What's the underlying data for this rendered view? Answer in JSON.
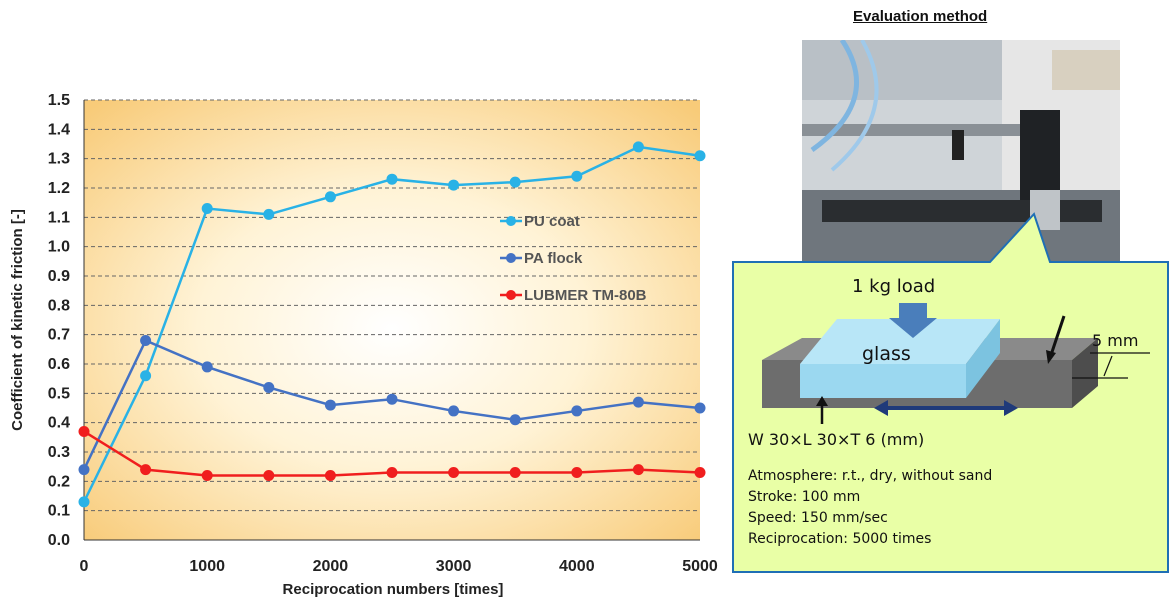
{
  "chart_data": {
    "type": "line",
    "xlabel": "Reciprocation numbers [times]",
    "ylabel": "Coefficient of kinetic friction [-]",
    "xlim": [
      0,
      5000
    ],
    "ylim": [
      0,
      1.5
    ],
    "x_ticks": [
      "0",
      "1000",
      "2000",
      "3000",
      "4000",
      "5000"
    ],
    "y_ticks": [
      "0.0",
      "0.1",
      "0.2",
      "0.3",
      "0.4",
      "0.5",
      "0.6",
      "0.7",
      "0.8",
      "0.9",
      "1.0",
      "1.1",
      "1.2",
      "1.3",
      "1.4",
      "1.5"
    ],
    "grid": true,
    "legend_position": "right",
    "x": [
      0,
      500,
      1000,
      1500,
      2000,
      2500,
      3000,
      3500,
      4000,
      4500,
      5000
    ],
    "series": [
      {
        "name": "PU coat",
        "color": "#29B2E6",
        "values": [
          0.13,
          0.56,
          1.13,
          1.11,
          1.17,
          1.23,
          1.21,
          1.22,
          1.24,
          1.34,
          1.31
        ]
      },
      {
        "name": "PA flock",
        "color": "#4472C4",
        "values": [
          0.24,
          0.68,
          0.59,
          0.52,
          0.46,
          0.48,
          0.44,
          0.41,
          0.44,
          0.47,
          0.45
        ]
      },
      {
        "name": "LUBMER TM-80B",
        "color": "#F01E1E",
        "values": [
          0.37,
          0.24,
          0.22,
          0.22,
          0.22,
          0.23,
          0.23,
          0.23,
          0.23,
          0.24,
          0.23
        ]
      }
    ]
  },
  "method": {
    "title": "Evaluation method",
    "load_label": "1 kg load",
    "glass_label": "glass",
    "thickness_label": "5 mm",
    "dimensions": "W 30×L 30×T 6 (mm)",
    "conditions": [
      "Atmosphere: r.t., dry, without sand",
      "Stroke: 100 mm",
      "Speed: 150 mm/sec",
      "Reciprocation: 5000 times"
    ],
    "callout_color": "#E9FFA6",
    "callout_border": "#1F6FB5"
  }
}
